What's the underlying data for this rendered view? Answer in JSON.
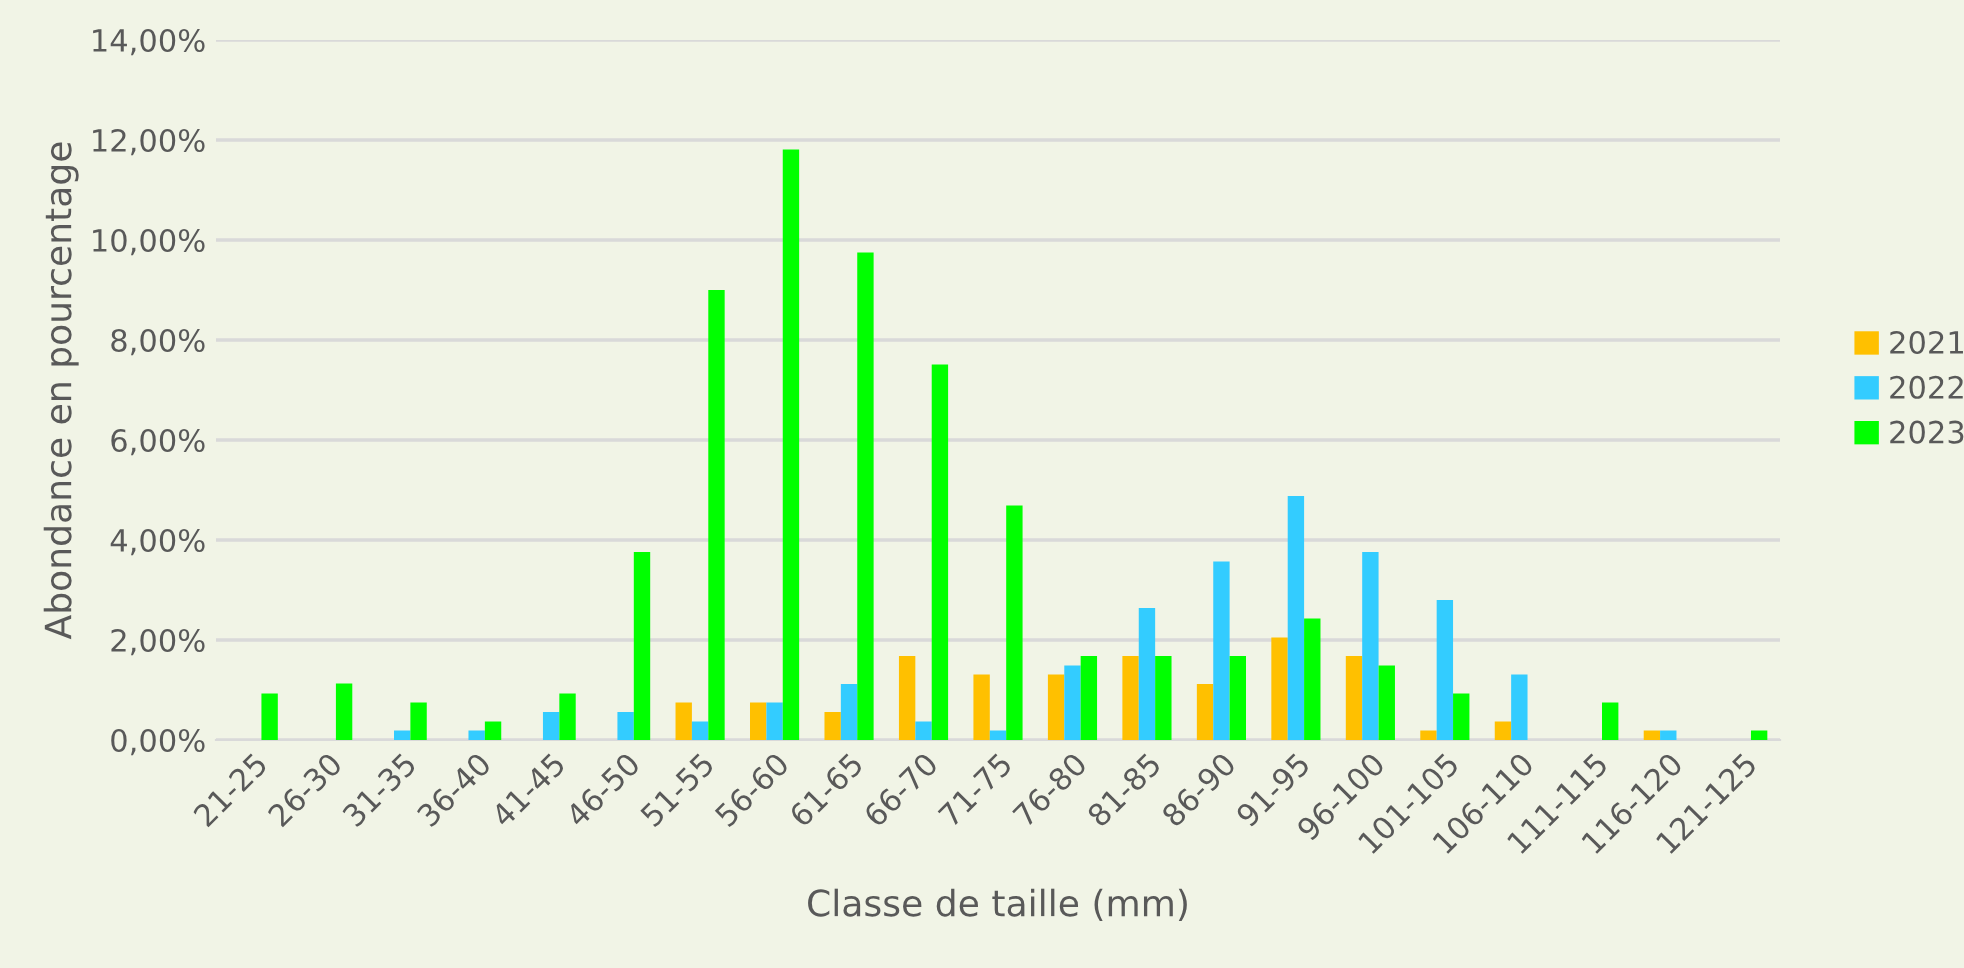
{
  "chart_data": {
    "type": "bar",
    "xlabel": "Classe de taille (mm)",
    "ylabel": "Abondance en pourcentage",
    "categories": [
      "21-25",
      "26-30",
      "31-35",
      "36-40",
      "41-45",
      "46-50",
      "51-55",
      "56-60",
      "61-65",
      "66-70",
      "71-75",
      "76-80",
      "81-85",
      "86-90",
      "91-95",
      "96-100",
      "101-105",
      "106-110",
      "111-115",
      "116-120",
      "121-125"
    ],
    "series": [
      {
        "name": "2021",
        "color": "#ffc000",
        "values": [
          null,
          null,
          null,
          null,
          null,
          null,
          0.75,
          0.75,
          0.56,
          1.68,
          1.31,
          1.31,
          1.68,
          1.12,
          2.05,
          1.68,
          0.19,
          0.37,
          null,
          0.19,
          null
        ]
      },
      {
        "name": "2022",
        "color": "#33ccff",
        "values": [
          null,
          null,
          0.19,
          0.19,
          0.56,
          0.56,
          0.37,
          0.75,
          1.12,
          0.37,
          0.19,
          1.49,
          2.64,
          3.57,
          4.88,
          3.76,
          2.8,
          1.31,
          null,
          0.19,
          null
        ]
      },
      {
        "name": "2023",
        "color": "#00ff00",
        "values": [
          0.93,
          1.13,
          0.75,
          0.37,
          0.93,
          3.76,
          9.0,
          11.81,
          9.75,
          7.51,
          4.69,
          1.68,
          1.68,
          1.68,
          2.43,
          1.49,
          0.93,
          null,
          0.75,
          null,
          0.19
        ]
      }
    ],
    "ylim": [
      0,
      14
    ],
    "yticks": [
      {
        "value": 0,
        "label": "0,00%"
      },
      {
        "value": 2,
        "label": "2,00%"
      },
      {
        "value": 4,
        "label": "4,00%"
      },
      {
        "value": 6,
        "label": "6,00%"
      },
      {
        "value": 8,
        "label": "8,00%"
      },
      {
        "value": 10,
        "label": "10,00%"
      },
      {
        "value": 12,
        "label": "12,00%"
      },
      {
        "value": 14,
        "label": "14,00%"
      }
    ],
    "grid": "y",
    "legend": "right"
  }
}
